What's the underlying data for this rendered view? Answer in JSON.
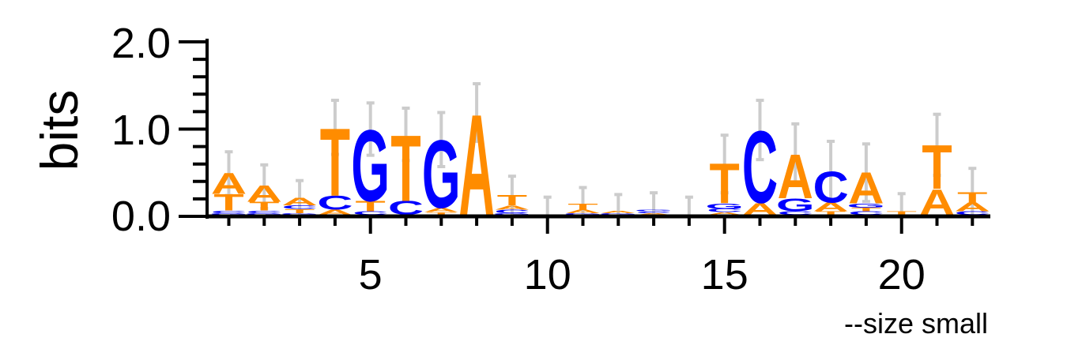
{
  "chart_data": {
    "type": "sequence-logo",
    "ylabel": "bits",
    "footnote": "--size small",
    "ylim": [
      0,
      2.0
    ],
    "y_ticks": [
      "0.0",
      "1.0",
      "2.0"
    ],
    "x_ticks": [
      "5",
      "10",
      "15",
      "20"
    ],
    "x_tick_positions": [
      5,
      10,
      15,
      20
    ],
    "colors": {
      "A": "#ff8c00",
      "C": "#0000ff",
      "G": "#0000ff",
      "T": "#ff8c00",
      "error_bar": "#cccccc",
      "axis": "#000000"
    },
    "positions": [
      {
        "pos": 1,
        "letters": [
          [
            "G",
            0.02
          ],
          [
            "C",
            0.03
          ],
          [
            "T",
            0.19
          ],
          [
            "A",
            0.25
          ]
        ],
        "error": 0.25
      },
      {
        "pos": 2,
        "letters": [
          [
            "G",
            0.02
          ],
          [
            "C",
            0.03
          ],
          [
            "T",
            0.1
          ],
          [
            "A",
            0.19
          ]
        ],
        "error": 0.25
      },
      {
        "pos": 3,
        "letters": [
          [
            "G",
            0.02
          ],
          [
            "T",
            0.05
          ],
          [
            "C",
            0.04
          ],
          [
            "A",
            0.09
          ]
        ],
        "error": 0.21
      },
      {
        "pos": 4,
        "letters": [
          [
            "A",
            0.06
          ],
          [
            "C",
            0.16
          ],
          [
            "T",
            0.8
          ]
        ],
        "error": 0.31
      },
      {
        "pos": 5,
        "letters": [
          [
            "C",
            0.04
          ],
          [
            "T",
            0.12
          ],
          [
            "G",
            0.84
          ]
        ],
        "error": 0.3
      },
      {
        "pos": 6,
        "letters": [
          [
            "C",
            0.16
          ],
          [
            "T",
            0.78
          ]
        ],
        "error": 0.3
      },
      {
        "pos": 7,
        "letters": [
          [
            "T",
            0.03
          ],
          [
            "A",
            0.05
          ],
          [
            "G",
            0.8
          ]
        ],
        "error": 0.31
      },
      {
        "pos": 8,
        "letters": [
          [
            "A",
            1.19
          ]
        ],
        "error": 0.33
      },
      {
        "pos": 9,
        "letters": [
          [
            "G",
            0.02
          ],
          [
            "C",
            0.04
          ],
          [
            "A",
            0.05
          ],
          [
            "T",
            0.12
          ]
        ],
        "error": 0.23
      },
      {
        "pos": 10,
        "letters": [],
        "error": 0.22
      },
      {
        "pos": 11,
        "letters": [
          [
            "G",
            0.02
          ],
          [
            "A",
            0.04
          ],
          [
            "T",
            0.07
          ]
        ],
        "error": 0.2
      },
      {
        "pos": 12,
        "letters": [
          [
            "G",
            0.02
          ],
          [
            "A",
            0.03
          ]
        ],
        "error": 0.2
      },
      {
        "pos": 13,
        "letters": [
          [
            "A",
            0.02
          ],
          [
            "C",
            0.02
          ],
          [
            "G",
            0.02
          ]
        ],
        "error": 0.21
      },
      {
        "pos": 14,
        "letters": [],
        "error": 0.22
      },
      {
        "pos": 15,
        "letters": [
          [
            "A",
            0.03
          ],
          [
            "C",
            0.04
          ],
          [
            "G",
            0.06
          ],
          [
            "T",
            0.47
          ]
        ],
        "error": 0.33
      },
      {
        "pos": 16,
        "letters": [
          [
            "A",
            0.14
          ],
          [
            "C",
            0.85
          ]
        ],
        "error": 0.34
      },
      {
        "pos": 17,
        "letters": [
          [
            "C",
            0.04
          ],
          [
            "G",
            0.15
          ],
          [
            "A",
            0.52
          ]
        ],
        "error": 0.35
      },
      {
        "pos": 18,
        "letters": [
          [
            "T",
            0.04
          ],
          [
            "A",
            0.1
          ],
          [
            "C",
            0.37
          ]
        ],
        "error": 0.35
      },
      {
        "pos": 19,
        "letters": [
          [
            "C",
            0.04
          ],
          [
            "T",
            0.04
          ],
          [
            "G",
            0.05
          ],
          [
            "A",
            0.37
          ]
        ],
        "error": 0.33
      },
      {
        "pos": 20,
        "letters": [
          [
            "T",
            0.04
          ]
        ],
        "error": 0.22
      },
      {
        "pos": 21,
        "letters": [
          [
            "A",
            0.3
          ],
          [
            "T",
            0.52
          ]
        ],
        "error": 0.35
      },
      {
        "pos": 22,
        "letters": [
          [
            "C",
            0.04
          ],
          [
            "A",
            0.1
          ],
          [
            "T",
            0.12
          ]
        ],
        "error": 0.29
      }
    ]
  }
}
